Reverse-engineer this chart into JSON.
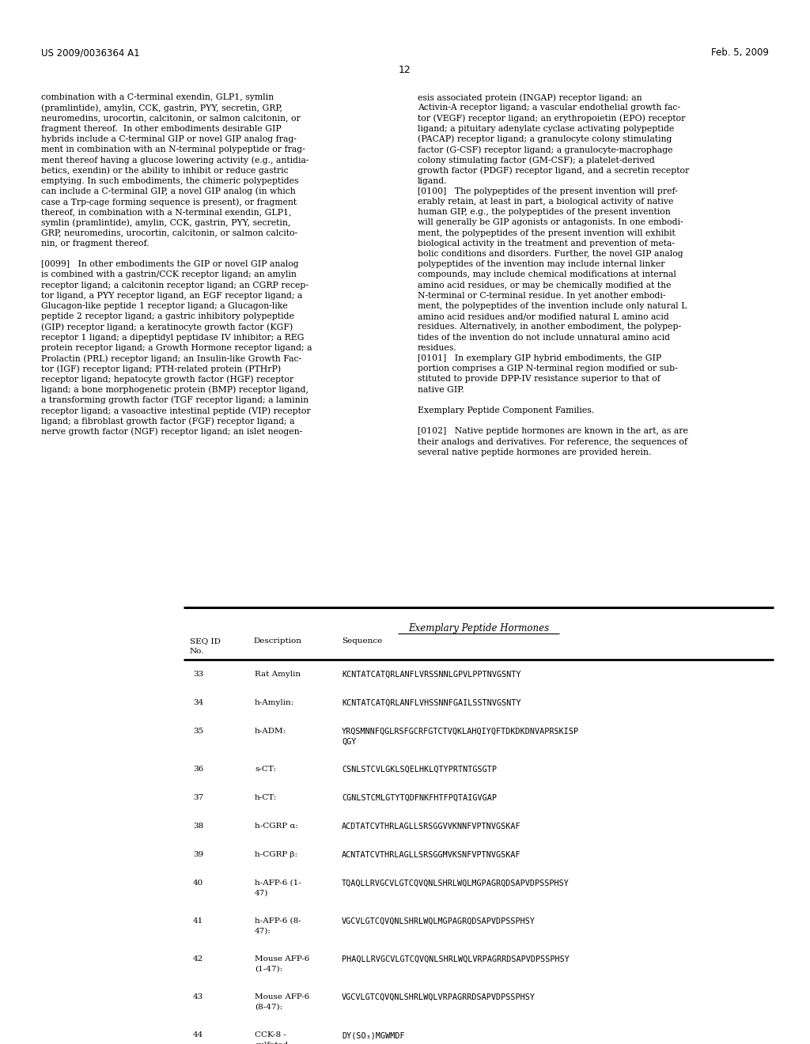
{
  "header_left": "US 2009/0036364 A1",
  "header_right": "Feb. 5, 2009",
  "page_number": "12",
  "left_col_text": [
    "combination with a C-terminal exendin, GLP1, symlin",
    "(pramlintide), amylin, CCK, gastrin, PYY, secretin, GRP,",
    "neuromedins, urocortin, calcitonin, or salmon calcitonin, or",
    "fragment thereof.  In other embodiments desirable GIP",
    "hybrids include a C-terminal GIP or novel GIP analog frag-",
    "ment in combination with an N-terminal polypeptide or frag-",
    "ment thereof having a glucose lowering activity (e.g., antidia-",
    "betics, exendin) or the ability to inhibit or reduce gastric",
    "emptying. In such embodiments, the chimeric polypeptides",
    "can include a C-terminal GIP, a novel GIP analog (in which",
    "case a Trp-cage forming sequence is present), or fragment",
    "thereof, in combination with a N-terminal exendin, GLP1,",
    "symlin (pramlintide), amylin, CCK, gastrin, PYY, secretin,",
    "GRP, neuromedins, urocortin, calcitonin, or salmon calcito-",
    "nin, or fragment thereof.",
    "",
    "[0099]   In other embodiments the GIP or novel GIP analog",
    "is combined with a gastrin/CCK receptor ligand; an amylin",
    "receptor ligand; a calcitonin receptor ligand; an CGRP recep-",
    "tor ligand, a PYY receptor ligand, an EGF receptor ligand; a",
    "Glucagon-like peptide 1 receptor ligand; a Glucagon-like",
    "peptide 2 receptor ligand; a gastric inhibitory polypeptide",
    "(GIP) receptor ligand; a keratinocyte growth factor (KGF)",
    "receptor 1 ligand; a dipeptidyl peptidase IV inhibitor; a REG",
    "protein receptor ligand; a Growth Hormone receptor ligand; a",
    "Prolactin (PRL) receptor ligand; an Insulin-like Growth Fac-",
    "tor (IGF) receptor ligand; PTH-related protein (PTHrP)",
    "receptor ligand; hepatocyte growth factor (HGF) receptor",
    "ligand; a bone morphogenetic protein (BMP) receptor ligand,",
    "a transforming growth factor (TGF receptor ligand; a laminin",
    "receptor ligand; a vasoactive intestinal peptide (VIP) receptor",
    "ligand; a fibroblast growth factor (FGF) receptor ligand; a",
    "nerve growth factor (NGF) receptor ligand; an islet neogen-"
  ],
  "right_col_text": [
    "esis associated protein (INGAP) receptor ligand; an",
    "Activin-A receptor ligand; a vascular endothelial growth fac-",
    "tor (VEGF) receptor ligand; an erythropoietin (EPO) receptor",
    "ligand; a pituitary adenylate cyclase activating polypeptide",
    "(PACAP) receptor ligand; a granulocyte colony stimulating",
    "factor (G-CSF) receptor ligand; a granulocyte-macrophage",
    "colony stimulating factor (GM-CSF); a platelet-derived",
    "growth factor (PDGF) receptor ligand, and a secretin receptor",
    "ligand.",
    "[0100]   The polypeptides of the present invention will pref-",
    "erably retain, at least in part, a biological activity of native",
    "human GIP, e.g., the polypeptides of the present invention",
    "will generally be GIP agonists or antagonists. In one embodi-",
    "ment, the polypeptides of the present invention will exhibit",
    "biological activity in the treatment and prevention of meta-",
    "bolic conditions and disorders. Further, the novel GIP analog",
    "polypeptides of the invention may include internal linker",
    "compounds, may include chemical modifications at internal",
    "amino acid residues, or may be chemically modified at the",
    "N-terminal or C-terminal residue. In yet another embodi-",
    "ment, the polypeptides of the invention include only natural L",
    "amino acid residues and/or modified natural L amino acid",
    "residues. Alternatively, in another embodiment, the polypep-",
    "tides of the invention do not include unnatural amino acid",
    "residues.",
    "[0101]   In exemplary GIP hybrid embodiments, the GIP",
    "portion comprises a GIP N-terminal region modified or sub-",
    "stituted to provide DPP-IV resistance superior to that of",
    "native GIP.",
    "",
    "Exemplary Peptide Component Families.",
    "",
    "[0102]   Native peptide hormones are known in the art, as are",
    "their analogs and derivatives. For reference, the sequences of",
    "several native peptide hormones are provided herein."
  ],
  "table_title": "Exemplary Peptide Hormones",
  "table_rows": [
    {
      "seq": "33",
      "desc": "Rat Amylin",
      "seq_str": "KCNTATCATQRLANFLVRSSNNLGPVLPPTNVGSNTY",
      "two_line": false
    },
    {
      "seq": "34",
      "desc": "h-Amylin:",
      "seq_str": "KCNTATCATQRLANFLVHSSNNFGAILSSTNVGSNTY",
      "two_line": false
    },
    {
      "seq": "35",
      "desc": "h-ADM:",
      "seq_str": "YRQSMNNFQGLRSFGCRFGTCTVQKLAHQIYQFTDKDKDNVAPRSKISP",
      "seq_str2": "QGY",
      "two_line": true
    },
    {
      "seq": "36",
      "desc": "s-CT:",
      "seq_str": "CSNLSTCVLGKLSQELHKLQTYPRTNTGSGTP",
      "two_line": false
    },
    {
      "seq": "37",
      "desc": "h-CT:",
      "seq_str": "CGNLSTCMLGTYTQDFNKFHTFPQTAIGVGAP",
      "two_line": false
    },
    {
      "seq": "38",
      "desc": "h-CGRP α:",
      "seq_str": "ACDTATCVTHRLAGLLSRSGGVVKNNFVPTNVGSKAF",
      "two_line": false
    },
    {
      "seq": "39",
      "desc": "h-CGRP β:",
      "seq_str": "ACNTATCVTHRLAGLLSRSGGMVKSNFVPTNVGSKAF",
      "two_line": false
    },
    {
      "seq": "40",
      "desc1": "h-AFP-6 (1-",
      "desc2": "47)",
      "seq_str": "TQAQLLRVGCVLGTCQVQNLSHRLWQLMGPAGRQDSAPVDPSSPHSY",
      "two_line": true,
      "desc_two_line": true
    },
    {
      "seq": "41",
      "desc1": "h-AFP-6 (8-",
      "desc2": "47):",
      "seq_str": "VGCVLGTCQVQNLSHRLWQLMGPAGRQDSAPVDPSSPHSY",
      "two_line": true,
      "desc_two_line": true
    },
    {
      "seq": "42",
      "desc1": "Mouse AFP-6",
      "desc2": "(1-47):",
      "seq_str": "PHAQLLRVGCVLGTCQVQNLSHRLWQLVRPAGRRDSAPVDPSSPHSY",
      "two_line": true,
      "desc_two_line": true
    },
    {
      "seq": "43",
      "desc1": "Mouse AFP-6",
      "desc2": "(8-47):",
      "seq_str": "VGCVLGTCQVQNLSHRLWQLVRPAGRRDSAPVDPSSPHSY",
      "two_line": true,
      "desc_two_line": true
    },
    {
      "seq": "44",
      "desc1": "CCK-8 -",
      "desc2": "sulfated:",
      "seq_str": "DY(SO₃)MGWMDF",
      "two_line": true,
      "desc_two_line": true
    }
  ],
  "bg_color": "#ffffff",
  "text_color": "#000000"
}
